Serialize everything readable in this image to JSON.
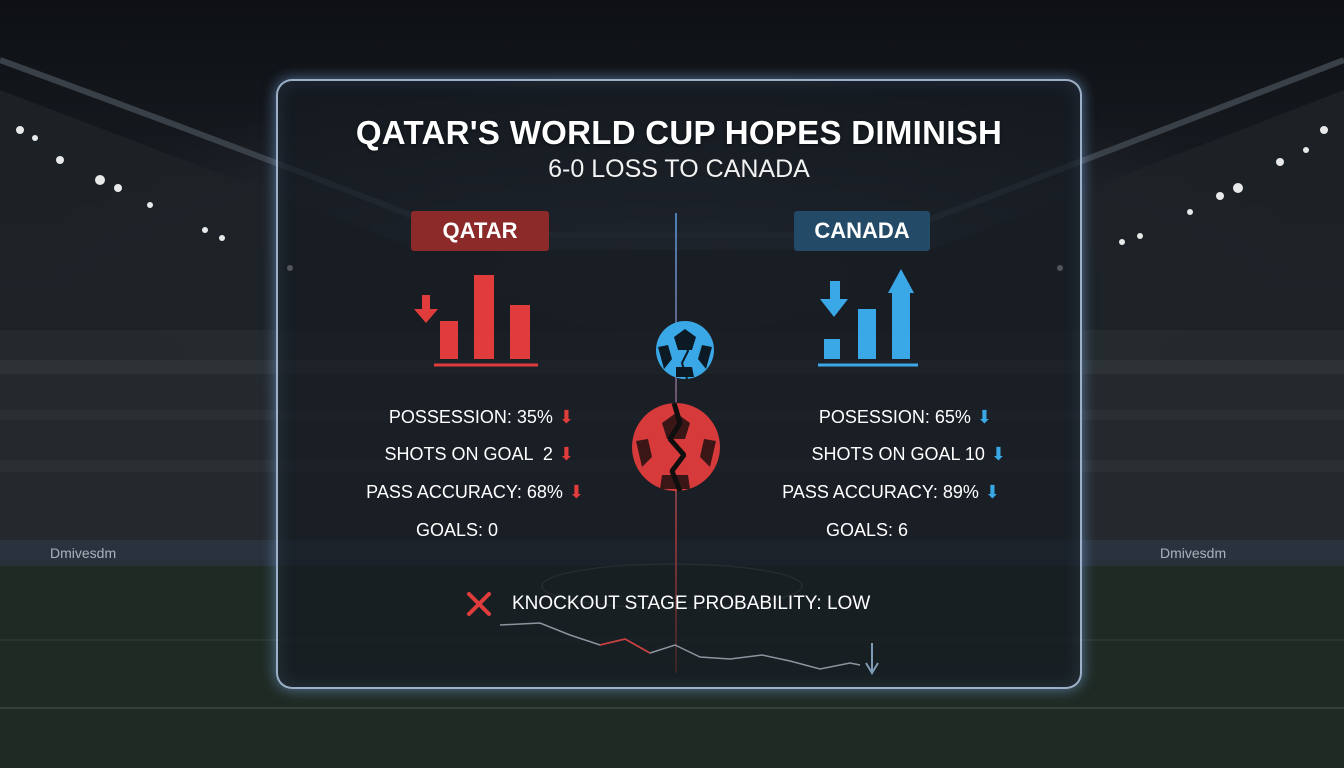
{
  "header": {
    "title": "QATAR'S WORLD CUP HOPES DIMINISH",
    "subtitle": "6-0 LOSS TO CANADA"
  },
  "teams": {
    "qatar": {
      "name": "QATAR",
      "color": "#e13c3c",
      "stats": [
        {
          "label": "POSSESSION: 35%",
          "arrow": "down"
        },
        {
          "label": "SHOTS ON GOAL  2",
          "arrow": "down"
        },
        {
          "label": "PASS ACCURACY: 68%",
          "arrow": "down"
        },
        {
          "label": "GOALS: 0",
          "arrow": ""
        }
      ]
    },
    "canada": {
      "name": "CANADA",
      "color": "#3aa7e6",
      "stats": [
        {
          "label": "POSESSION: 65%",
          "arrow": "down"
        },
        {
          "label": "SHOTS ON GOAL 10",
          "arrow": "down"
        },
        {
          "label": "PASS ACCURACY: 89%",
          "arrow": "down"
        },
        {
          "label": "GOALS: 6",
          "arrow": ""
        }
      ]
    }
  },
  "footer": {
    "knockout": "KNOCKOUT STAGE PROBABILITY: LOW"
  },
  "icons": {
    "qatar_trend": "bar-chart-down-icon",
    "canada_trend": "bar-chart-up-icon",
    "canada_ball": "soccer-ball-icon",
    "qatar_ball": "cracked-soccer-ball-icon",
    "knockout_status": "x-mark-icon",
    "trend_line": "declining-line-icon"
  },
  "background": {
    "board_text": "Dmivesdm"
  }
}
